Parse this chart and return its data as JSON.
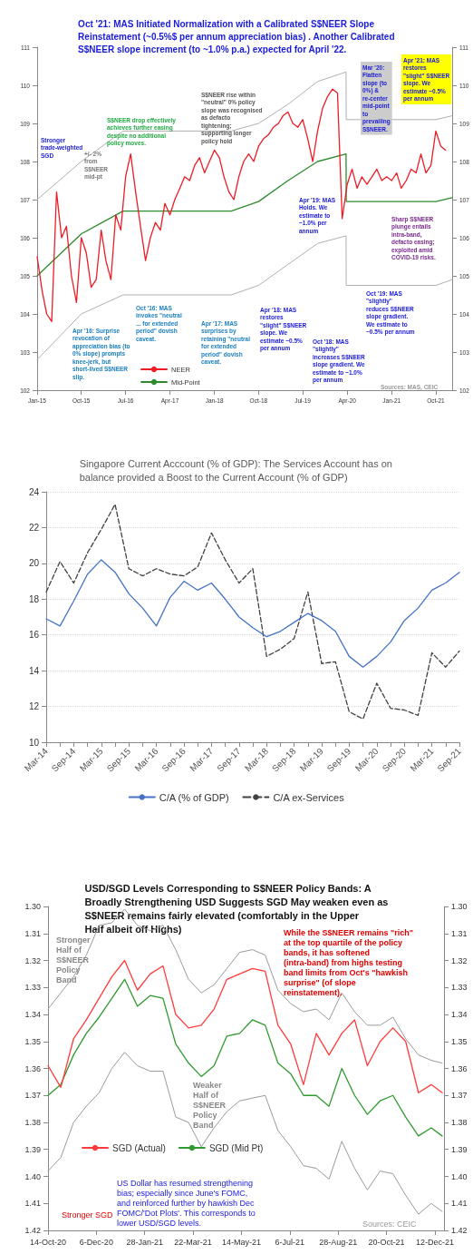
{
  "chart_data": [
    {
      "type": "line",
      "title": "Oct '21: MAS Initiated Normalization with a Calibrated S$NEER Slope Reinstatement (~0.5%$ per annum appreciation bias) . Another Calibrated S$NEER slope increment (to ~1.0% p.a.) expected for April '22.",
      "x": [
        "2015-01",
        "2015-02",
        "2015-03",
        "2015-04",
        "2015-05",
        "2015-06",
        "2015-07",
        "2015-08",
        "2015-09",
        "2015-10",
        "2015-11",
        "2015-12",
        "2016-01",
        "2016-02",
        "2016-03",
        "2016-04",
        "2016-05",
        "2016-06",
        "2016-07",
        "2016-08",
        "2016-09",
        "2016-10",
        "2016-11",
        "2016-12",
        "2017-01",
        "2017-02",
        "2017-03",
        "2017-04",
        "2017-05",
        "2017-06",
        "2017-07",
        "2017-08",
        "2017-09",
        "2017-10",
        "2017-11",
        "2017-12",
        "2018-01",
        "2018-02",
        "2018-03",
        "2018-04",
        "2018-05",
        "2018-06",
        "2018-07",
        "2018-08",
        "2018-09",
        "2018-10",
        "2018-11",
        "2018-12",
        "2019-01",
        "2019-02",
        "2019-03",
        "2019-04",
        "2019-05",
        "2019-06",
        "2019-07",
        "2019-08",
        "2019-09",
        "2019-10",
        "2019-11",
        "2019-12",
        "2020-01",
        "2020-02",
        "2020-03",
        "2020-04",
        "2020-05",
        "2020-06",
        "2020-07",
        "2020-08",
        "2020-09",
        "2020-10",
        "2020-11",
        "2020-12",
        "2021-01",
        "2021-02",
        "2021-03",
        "2021-04",
        "2021-05",
        "2021-06",
        "2021-07",
        "2021-08",
        "2021-09",
        "2021-10",
        "2021-11",
        "2021-12"
      ],
      "series": [
        {
          "name": "NEER",
          "color": "#ee1c25",
          "values": [
            105.5,
            104.6,
            104.0,
            103.8,
            107.2,
            106.0,
            106.3,
            105.0,
            104.3,
            106.0,
            105.6,
            104.7,
            104.9,
            106.2,
            105.4,
            104.9,
            106.6,
            106.2,
            107.6,
            108.2,
            107.2,
            106.3,
            105.4,
            106.0,
            106.4,
            106.2,
            106.9,
            106.6,
            107.0,
            107.3,
            107.6,
            107.5,
            107.9,
            108.1,
            107.7,
            108.0,
            108.3,
            108.1,
            107.6,
            107.2,
            107.0,
            107.6,
            108.0,
            108.2,
            108.0,
            108.4,
            108.6,
            108.7,
            108.9,
            109.0,
            109.2,
            109.3,
            109.0,
            108.9,
            109.1,
            108.6,
            108.0,
            108.8,
            109.4,
            109.7,
            109.9,
            109.8,
            106.5,
            107.4,
            107.8,
            107.3,
            107.6,
            107.4,
            107.6,
            107.8,
            107.5,
            107.6,
            107.5,
            107.7,
            107.3,
            107.5,
            107.8,
            107.7,
            108.2,
            107.7,
            107.9,
            108.8,
            108.4,
            108.3
          ]
        },
        {
          "name": "Mid-Point",
          "color": "#2e8b2e",
          "x": [
            "2015-01",
            "2015-10",
            "2016-06-15",
            "2018-04-15",
            "2018-10",
            "2019-04",
            "2019-10",
            "2020-03-25",
            "2020-03-26",
            "2021-10",
            "2022-01-10"
          ],
          "values": [
            105.0,
            106.1,
            106.7,
            106.7,
            106.95,
            107.5,
            108.0,
            108.2,
            106.95,
            106.95,
            107.05
          ]
        },
        {
          "color": "#b0b0b0",
          "x": [
            "2015-01",
            "2015-10",
            "2016-06-15",
            "2018-04-15",
            "2018-10",
            "2019-04",
            "2019-10",
            "2020-03-25",
            "2020-03-26",
            "2021-10",
            "2022-01-10"
          ],
          "values": [
            107.0,
            108.0,
            108.8,
            108.8,
            109.0,
            109.5,
            110.1,
            110.35,
            109.1,
            109.1,
            109.2
          ]
        },
        {
          "color": "#b0b0b0",
          "x": [
            "2015-01",
            "2015-10",
            "2016-06-15",
            "2018-04-15",
            "2018-10",
            "2019-04",
            "2019-10",
            "2020-03-25",
            "2020-03-26",
            "2021-10",
            "2022-01-10"
          ],
          "values": [
            102.8,
            104.0,
            104.5,
            104.5,
            104.75,
            105.3,
            105.85,
            106.05,
            104.75,
            104.75,
            104.9
          ]
        }
      ],
      "xlim": [
        "2015-01",
        "2022-01-10"
      ],
      "xticks": [
        {
          "value": "2015-01",
          "label": "Jan-15"
        },
        {
          "value": "2015-10",
          "label": "Oct-15"
        },
        {
          "value": "2016-07",
          "label": "Jul-16"
        },
        {
          "value": "2017-04",
          "label": "Apr-17"
        },
        {
          "value": "2018-01",
          "label": "Jan-18"
        },
        {
          "value": "2018-10",
          "label": "Oct-18"
        },
        {
          "value": "2019-07",
          "label": "Jul-19"
        },
        {
          "value": "2020-04",
          "label": "Apr-20"
        },
        {
          "value": "2021-01",
          "label": "Jan-21"
        },
        {
          "value": "2021-10",
          "label": "Oct-21"
        }
      ],
      "ylim": [
        102,
        111
      ],
      "yticks": [
        102,
        103,
        104,
        105,
        106,
        107,
        108,
        109,
        110,
        111
      ],
      "y2lim": [
        102,
        111
      ],
      "y2ticks": [
        102,
        103,
        104,
        105,
        106,
        107,
        108,
        109,
        110,
        111
      ],
      "legend": "bottom left",
      "annotations": [
        "Stronger trade-weighted SGD",
        "+/- 2% from S$NEER mid-pt",
        "S$NEER drop effectively achieves further easing despite no additional policy moves.",
        "S$NEER rise within \"neutral\" 0% policy slope was recognised as defacto tightening; supporting longer policy hold",
        "Mar '20: Flatten slope (to 0%) & re-center mid-point to prevailing S$NEER.",
        "Apr '21: MAS restores \"slight\" S$NEER slope. We estimate ~0.5% per annum",
        "Apr '19: MAS Holds. We estimate to ~1.0% per annum",
        "Sharp S$NEER plunge entails intra-band, defacto easing; exploited amid COVID-19 risks.",
        "Apr '16: Surprise revocation of appreciation bias (to 0% slope) prompts knee-jerk, but short-lived S$NEER slip.",
        "Oct '16: MAS invokes \"neutral ... for extended period\" dovish caveat.",
        "Apr '17: MAS surprises by retaining \"neutral for extended period\" dovish caveat.",
        "Apr '18: MAS restores \"slight\" S$NEER slope. We estimate ~0.5% per annum",
        "Oct '18: MAS \"slightly\" increases S$NEER slope gradient. We estimate to ~1.0% per annum",
        "Oct '19: MAS \"slightly\" reduces S$NEER slope gradient. We estimate to ~0.5% per annum",
        "Sources: MAS, CEIC"
      ]
    },
    {
      "type": "line",
      "title": "Singapore Current Acccount (% of GDP): The Services Account has on balance provided a Boost to the Current Account (% of GDP)",
      "categories": [
        "Mar-14",
        null,
        "Sep-14",
        null,
        "Mar-15",
        null,
        "Sep-15",
        null,
        "Mar-16",
        null,
        "Sep-16",
        null,
        "Mar-17",
        null,
        "Sep-17",
        null,
        "Mar-18",
        null,
        "Sep-18",
        null,
        "Mar-19",
        null,
        "Sep-19",
        null,
        "Mar-20",
        null,
        "Sep-20",
        null,
        "Mar-21",
        null,
        "Sep-21"
      ],
      "series": [
        {
          "name": "C/A (% of GDP)",
          "color": "#4472c4",
          "values": [
            16.9,
            16.5,
            17.9,
            19.4,
            20.2,
            19.5,
            18.3,
            17.5,
            16.5,
            18.1,
            19.0,
            18.5,
            18.9,
            18.0,
            17.0,
            16.4,
            15.9,
            16.2,
            16.7,
            17.2,
            16.8,
            16.2,
            14.8,
            14.2,
            14.8,
            15.6,
            16.8,
            17.5,
            18.5,
            18.9,
            19.5
          ]
        },
        {
          "name": "C/A ex-Services",
          "color": "#404040",
          "line_style": "dashed",
          "values": [
            18.4,
            20.1,
            18.9,
            20.6,
            21.9,
            23.3,
            19.7,
            19.3,
            19.7,
            19.4,
            19.3,
            19.8,
            21.7,
            20.2,
            18.9,
            19.7,
            14.8,
            15.2,
            15.8,
            18.4,
            14.4,
            14.5,
            11.7,
            11.3,
            13.3,
            11.9,
            11.8,
            11.5,
            15.0,
            14.2,
            15.1
          ]
        }
      ],
      "ylim": [
        10,
        24
      ],
      "yticks": [
        10,
        12,
        14,
        16,
        18,
        20,
        22,
        24
      ],
      "grid": "y",
      "legend": "bottom"
    },
    {
      "type": "line",
      "title": "USD/SGD Levels Corresponding to S$NEER Policy Bands: A Broadly Strengthening USD Suggests SGD May weaken even as S$NEER remains fairly elevated (comfortably in the Upper Half albeit off Highs)",
      "x": [
        "2020-10-14",
        "2020-10-28",
        "2020-11-11",
        "2020-11-25",
        "2020-12-09",
        "2020-12-23",
        "2021-01-06",
        "2021-01-20",
        "2021-02-03",
        "2021-02-17",
        "2021-03-03",
        "2021-03-17",
        "2021-03-31",
        "2021-04-14",
        "2021-04-28",
        "2021-05-12",
        "2021-05-26",
        "2021-06-09",
        "2021-06-23",
        "2021-07-07",
        "2021-07-21",
        "2021-08-04",
        "2021-08-18",
        "2021-09-01",
        "2021-09-15",
        "2021-09-29",
        "2021-10-13",
        "2021-10-27",
        "2021-11-10",
        "2021-11-24",
        "2021-12-08",
        "2021-12-20"
      ],
      "series": [
        {
          "name": "SGD (Actual)",
          "color": "#ff3b3b",
          "values": [
            1.359,
            1.367,
            1.349,
            1.342,
            1.334,
            1.326,
            1.32,
            1.331,
            1.325,
            1.322,
            1.34,
            1.345,
            1.344,
            1.338,
            1.327,
            1.325,
            1.323,
            1.324,
            1.344,
            1.351,
            1.366,
            1.347,
            1.355,
            1.347,
            1.342,
            1.359,
            1.35,
            1.345,
            1.35,
            1.369,
            1.366,
            1.369
          ]
        },
        {
          "name": "SGD (Mid Pt)",
          "color": "#2f9a2f",
          "values": [
            1.37,
            1.366,
            1.355,
            1.347,
            1.341,
            1.334,
            1.327,
            1.337,
            1.333,
            1.334,
            1.351,
            1.358,
            1.363,
            1.359,
            1.348,
            1.347,
            1.342,
            1.344,
            1.358,
            1.362,
            1.37,
            1.37,
            1.374,
            1.36,
            1.37,
            1.377,
            1.372,
            1.37,
            1.378,
            1.385,
            1.382,
            1.385
          ]
        },
        {
          "color": "#9a9a9a",
          "values": [
            1.338,
            1.332,
            1.326,
            1.318,
            1.307,
            1.306,
            1.301,
            1.307,
            1.309,
            1.307,
            1.316,
            1.327,
            1.332,
            1.329,
            1.323,
            1.317,
            1.316,
            1.318,
            1.331,
            1.336,
            1.339,
            1.338,
            1.342,
            1.332,
            1.339,
            1.344,
            1.344,
            1.341,
            1.349,
            1.355,
            1.357,
            1.358
          ]
        },
        {
          "color": "#9a9a9a",
          "values": [
            1.398,
            1.393,
            1.38,
            1.374,
            1.369,
            1.36,
            1.354,
            1.359,
            1.361,
            1.361,
            1.378,
            1.38,
            1.389,
            1.382,
            1.376,
            1.372,
            1.371,
            1.37,
            1.383,
            1.389,
            1.396,
            1.397,
            1.401,
            1.387,
            1.397,
            1.405,
            1.398,
            1.399,
            1.407,
            1.414,
            1.41,
            1.413
          ]
        }
      ],
      "xlim": [
        "2020-10-14",
        "2021-12-22"
      ],
      "xticks": [
        {
          "value": "2020-10-14",
          "label": "14-Oct-20"
        },
        {
          "value": "2020-12-06",
          "label": "6-Dec-20"
        },
        {
          "value": "2021-01-28",
          "label": "28-Jan-21"
        },
        {
          "value": "2021-03-22",
          "label": "22-Mar-21"
        },
        {
          "value": "2021-05-14",
          "label": "14-May-21"
        },
        {
          "value": "2021-07-06",
          "label": "6-Jul-21"
        },
        {
          "value": "2021-08-28",
          "label": "28-Aug-21"
        },
        {
          "value": "2021-10-20",
          "label": "20-Oct-21"
        },
        {
          "value": "2021-12-12",
          "label": "12-Dec-21"
        }
      ],
      "ylim": [
        1.42,
        1.3
      ],
      "yticks": [
        {
          "value": 1.3,
          "label": "1.30"
        },
        1.31,
        1.32,
        1.33,
        1.34,
        1.35,
        1.36,
        1.37,
        1.38,
        1.39,
        {
          "value": 1.4,
          "label": "1.40"
        },
        1.41,
        {
          "value": 1.42,
          "label": "1.42"
        }
      ],
      "y2lim": [
        1.42,
        1.3
      ],
      "y2ticks": [
        {
          "value": 1.3,
          "label": "1.30"
        },
        1.31,
        1.32,
        1.33,
        1.34,
        1.35,
        1.36,
        1.37,
        1.38,
        1.39,
        {
          "value": 1.4,
          "label": "1.40"
        },
        1.41,
        {
          "value": 1.42,
          "label": "1.42"
        }
      ],
      "legend": "left",
      "annotations": [
        "Stronger Half of S$NEER Policy Band",
        "Weaker Half of S$NEER Policy Band",
        "While the S$NEER remains \"rich\" at the top quartile of the policy bands, it has softened (intra-band) from highs testing band limits from Oct's \"hawkish surprise\" (of slope reinstatement).",
        "US Dollar has resumed strengthening bias; especially since June's FOMC, and reinforced further by hawkish Dec FOMC/'Dot Plots'. This corresponds to lower USD/SGD levels.",
        "Stronger SGD",
        "Sources: CEIC"
      ]
    }
  ]
}
